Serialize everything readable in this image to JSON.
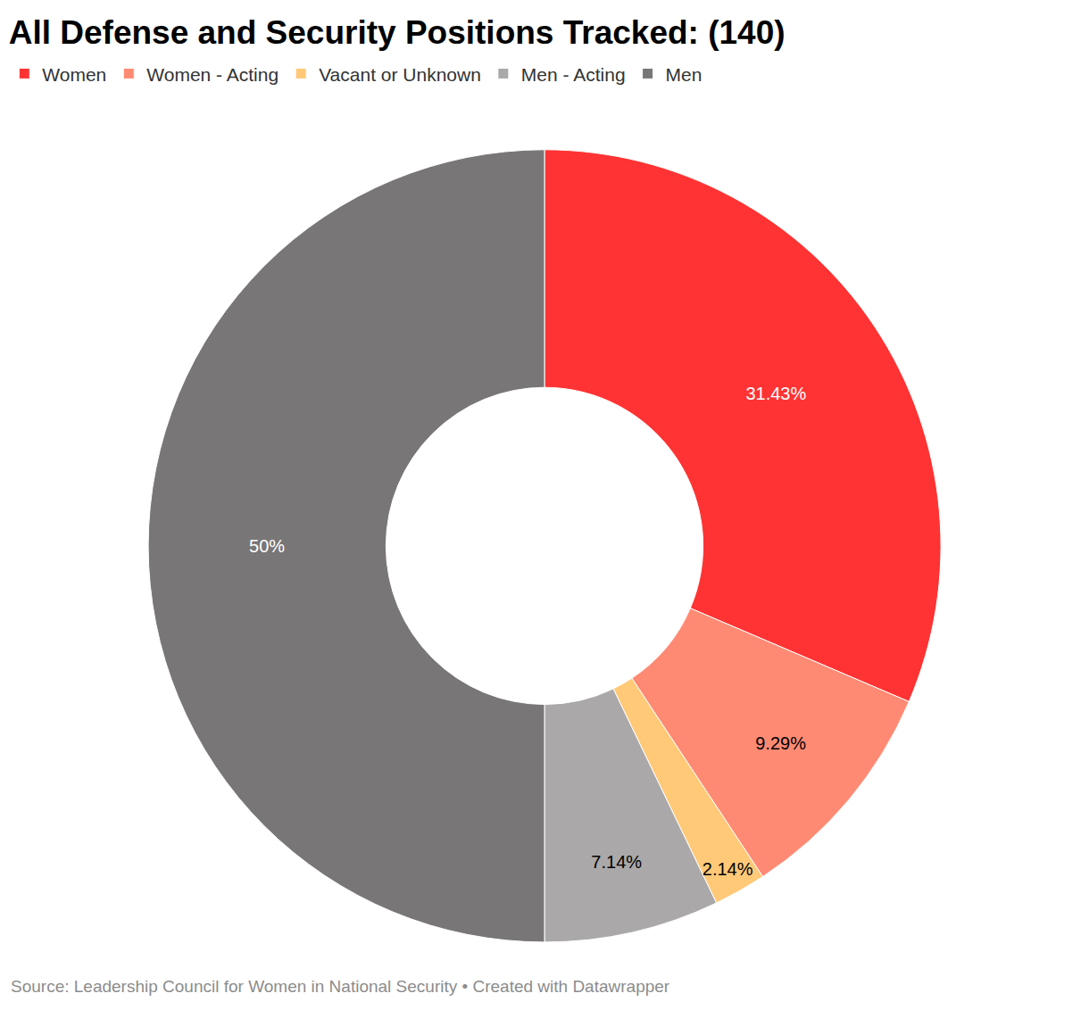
{
  "chart_data": {
    "type": "pie",
    "title": "All Defense and Security Positions Tracked: (140)",
    "source": "Source: Leadership Council for Women in National Security • Created with Datawrapper",
    "categories": [
      "Women",
      "Women - Acting",
      "Vacant or Unknown",
      "Men - Acting",
      "Men"
    ],
    "values": [
      31.43,
      9.29,
      2.14,
      7.14,
      50
    ],
    "value_labels": [
      "31.43%",
      "9.29%",
      "2.14%",
      "7.14%",
      "50%"
    ],
    "colors": [
      "#ff3333",
      "#ff8a73",
      "#ffc978",
      "#aaa8a8",
      "#797677"
    ],
    "data_labels": true,
    "legend": "top-left"
  }
}
